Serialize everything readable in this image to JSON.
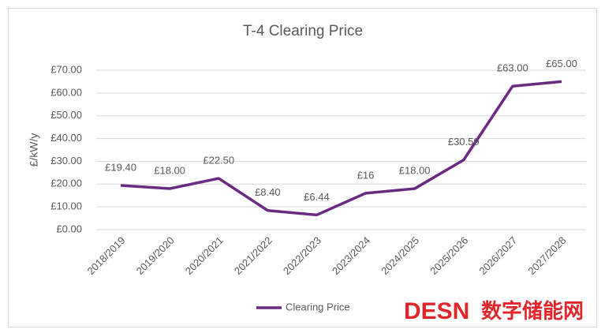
{
  "chart_data": {
    "type": "line",
    "title": "T-4 Clearing Price",
    "y_label": "£/kW/y",
    "categories": [
      "2018/2019",
      "2019/2020",
      "2020/2021",
      "2021/2022",
      "2022/2023",
      "2023/2024",
      "2024/2025",
      "2025/2026",
      "2026/2027",
      "2027/2028"
    ],
    "series": [
      {
        "name": "Clearing Price",
        "color": "#6a2a82",
        "values": [
          19.4,
          18,
          22.5,
          8.4,
          6.44,
          16,
          18,
          30.59,
          63,
          65
        ],
        "value_labels": [
          "£19.40",
          "£18.00",
          "£22.50",
          "£8.40",
          "£6.44",
          "£16",
          "£18.00",
          "£30.59",
          "£63.00",
          "£65.00"
        ]
      }
    ],
    "ylim": [
      0,
      70
    ],
    "yticks": [
      {
        "value": 0,
        "label": "£0.00"
      },
      {
        "value": 10,
        "label": "£10.00"
      },
      {
        "value": 20,
        "label": "£20.00"
      },
      {
        "value": 30,
        "label": "£30.00"
      },
      {
        "value": 40,
        "label": "£40.00"
      },
      {
        "value": 50,
        "label": "£50.00"
      },
      {
        "value": 60,
        "label": "£60.00"
      },
      {
        "value": 70,
        "label": "£70.00"
      }
    ],
    "grid": true,
    "legend": "bottom",
    "watermark": {
      "brand": "DESN",
      "text": "数字储能网"
    }
  }
}
